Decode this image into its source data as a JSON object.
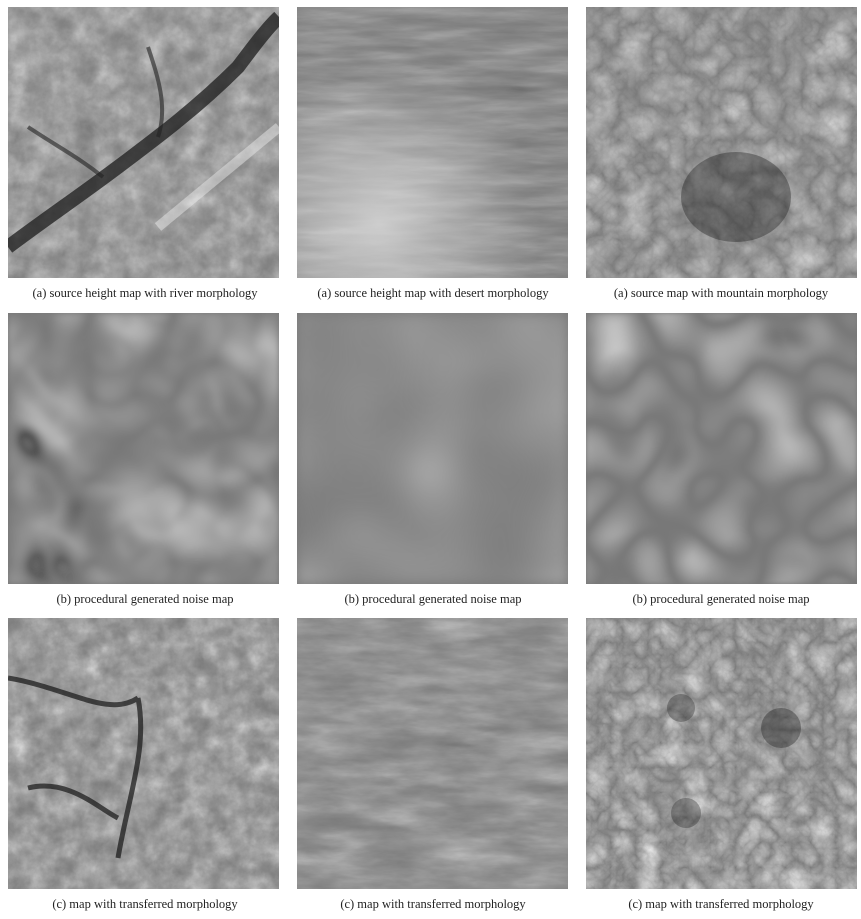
{
  "figure": {
    "rows": [
      {
        "panels": [
          {
            "caption": "(a) source height map with river morphology",
            "image_kind": "river-height-map"
          },
          {
            "caption": "(a) source height map with desert morphology",
            "image_kind": "desert-height-map"
          },
          {
            "caption": "(a) source map with mountain morphology",
            "image_kind": "mountain-height-map"
          }
        ]
      },
      {
        "panels": [
          {
            "caption": "(b) procedural generated noise map",
            "image_kind": "noise-map-river"
          },
          {
            "caption": "(b) procedural generated noise map",
            "image_kind": "noise-map-desert"
          },
          {
            "caption": "(b) procedural generated noise map",
            "image_kind": "noise-map-mountain"
          }
        ]
      },
      {
        "panels": [
          {
            "caption": "(c) map with transferred morphology",
            "image_kind": "transferred-river"
          },
          {
            "caption": "(c) map with transferred morphology",
            "image_kind": "transferred-desert"
          },
          {
            "caption": "(c) map with transferred morphology",
            "image_kind": "transferred-mountain"
          }
        ]
      }
    ]
  }
}
